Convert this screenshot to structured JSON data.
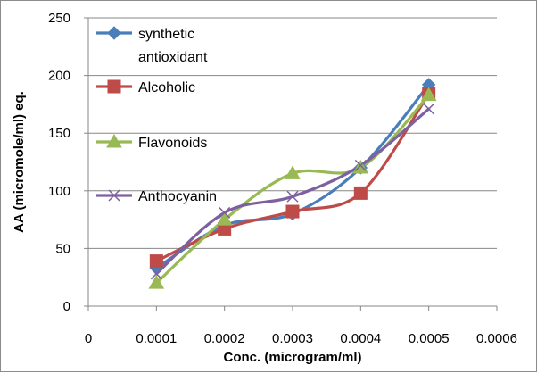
{
  "chart_data": {
    "type": "line",
    "title": "",
    "xlabel": "Conc. (microgram/ml)",
    "ylabel": "AA (micromole/ml) eq.",
    "xlim": [
      0,
      0.0006
    ],
    "ylim": [
      0,
      250
    ],
    "x_ticks": [
      0,
      0.0001,
      0.0002,
      0.0003,
      0.0004,
      0.0005,
      0.0006
    ],
    "x_tick_labels": [
      "0",
      "0.0001",
      "0.0002",
      "0.0003",
      "0.0004",
      "0.0005",
      "0.0006"
    ],
    "y_ticks": [
      0,
      50,
      100,
      150,
      200,
      250
    ],
    "y_tick_labels": [
      "0",
      "50",
      "100",
      "150",
      "200",
      "250"
    ],
    "grid": "horizontal",
    "legend_position": "top-left",
    "x": [
      0.0001,
      0.0002,
      0.0003,
      0.0004,
      0.0005
    ],
    "series": [
      {
        "name_lines": [
          "synthetic",
          "antioxidant"
        ],
        "name": "synthetic antioxidant",
        "marker": "diamond",
        "color": "#4a7ebb",
        "values": [
          33,
          70,
          80,
          120,
          192
        ]
      },
      {
        "name_lines": [
          "Alcoholic"
        ],
        "name": "Alcoholic",
        "marker": "square",
        "color": "#be4b48",
        "values": [
          39,
          67,
          82,
          98,
          184
        ]
      },
      {
        "name_lines": [
          "Flavonoids"
        ],
        "name": "Flavonoids",
        "marker": "triangle",
        "color": "#98b954",
        "values": [
          20,
          75,
          115,
          120,
          183
        ]
      },
      {
        "name_lines": [
          "Anthocyanin"
        ],
        "name": "Anthocyanin",
        "marker": "x",
        "color": "#7d60a0",
        "values": [
          28,
          81,
          95,
          122,
          171
        ]
      }
    ]
  }
}
